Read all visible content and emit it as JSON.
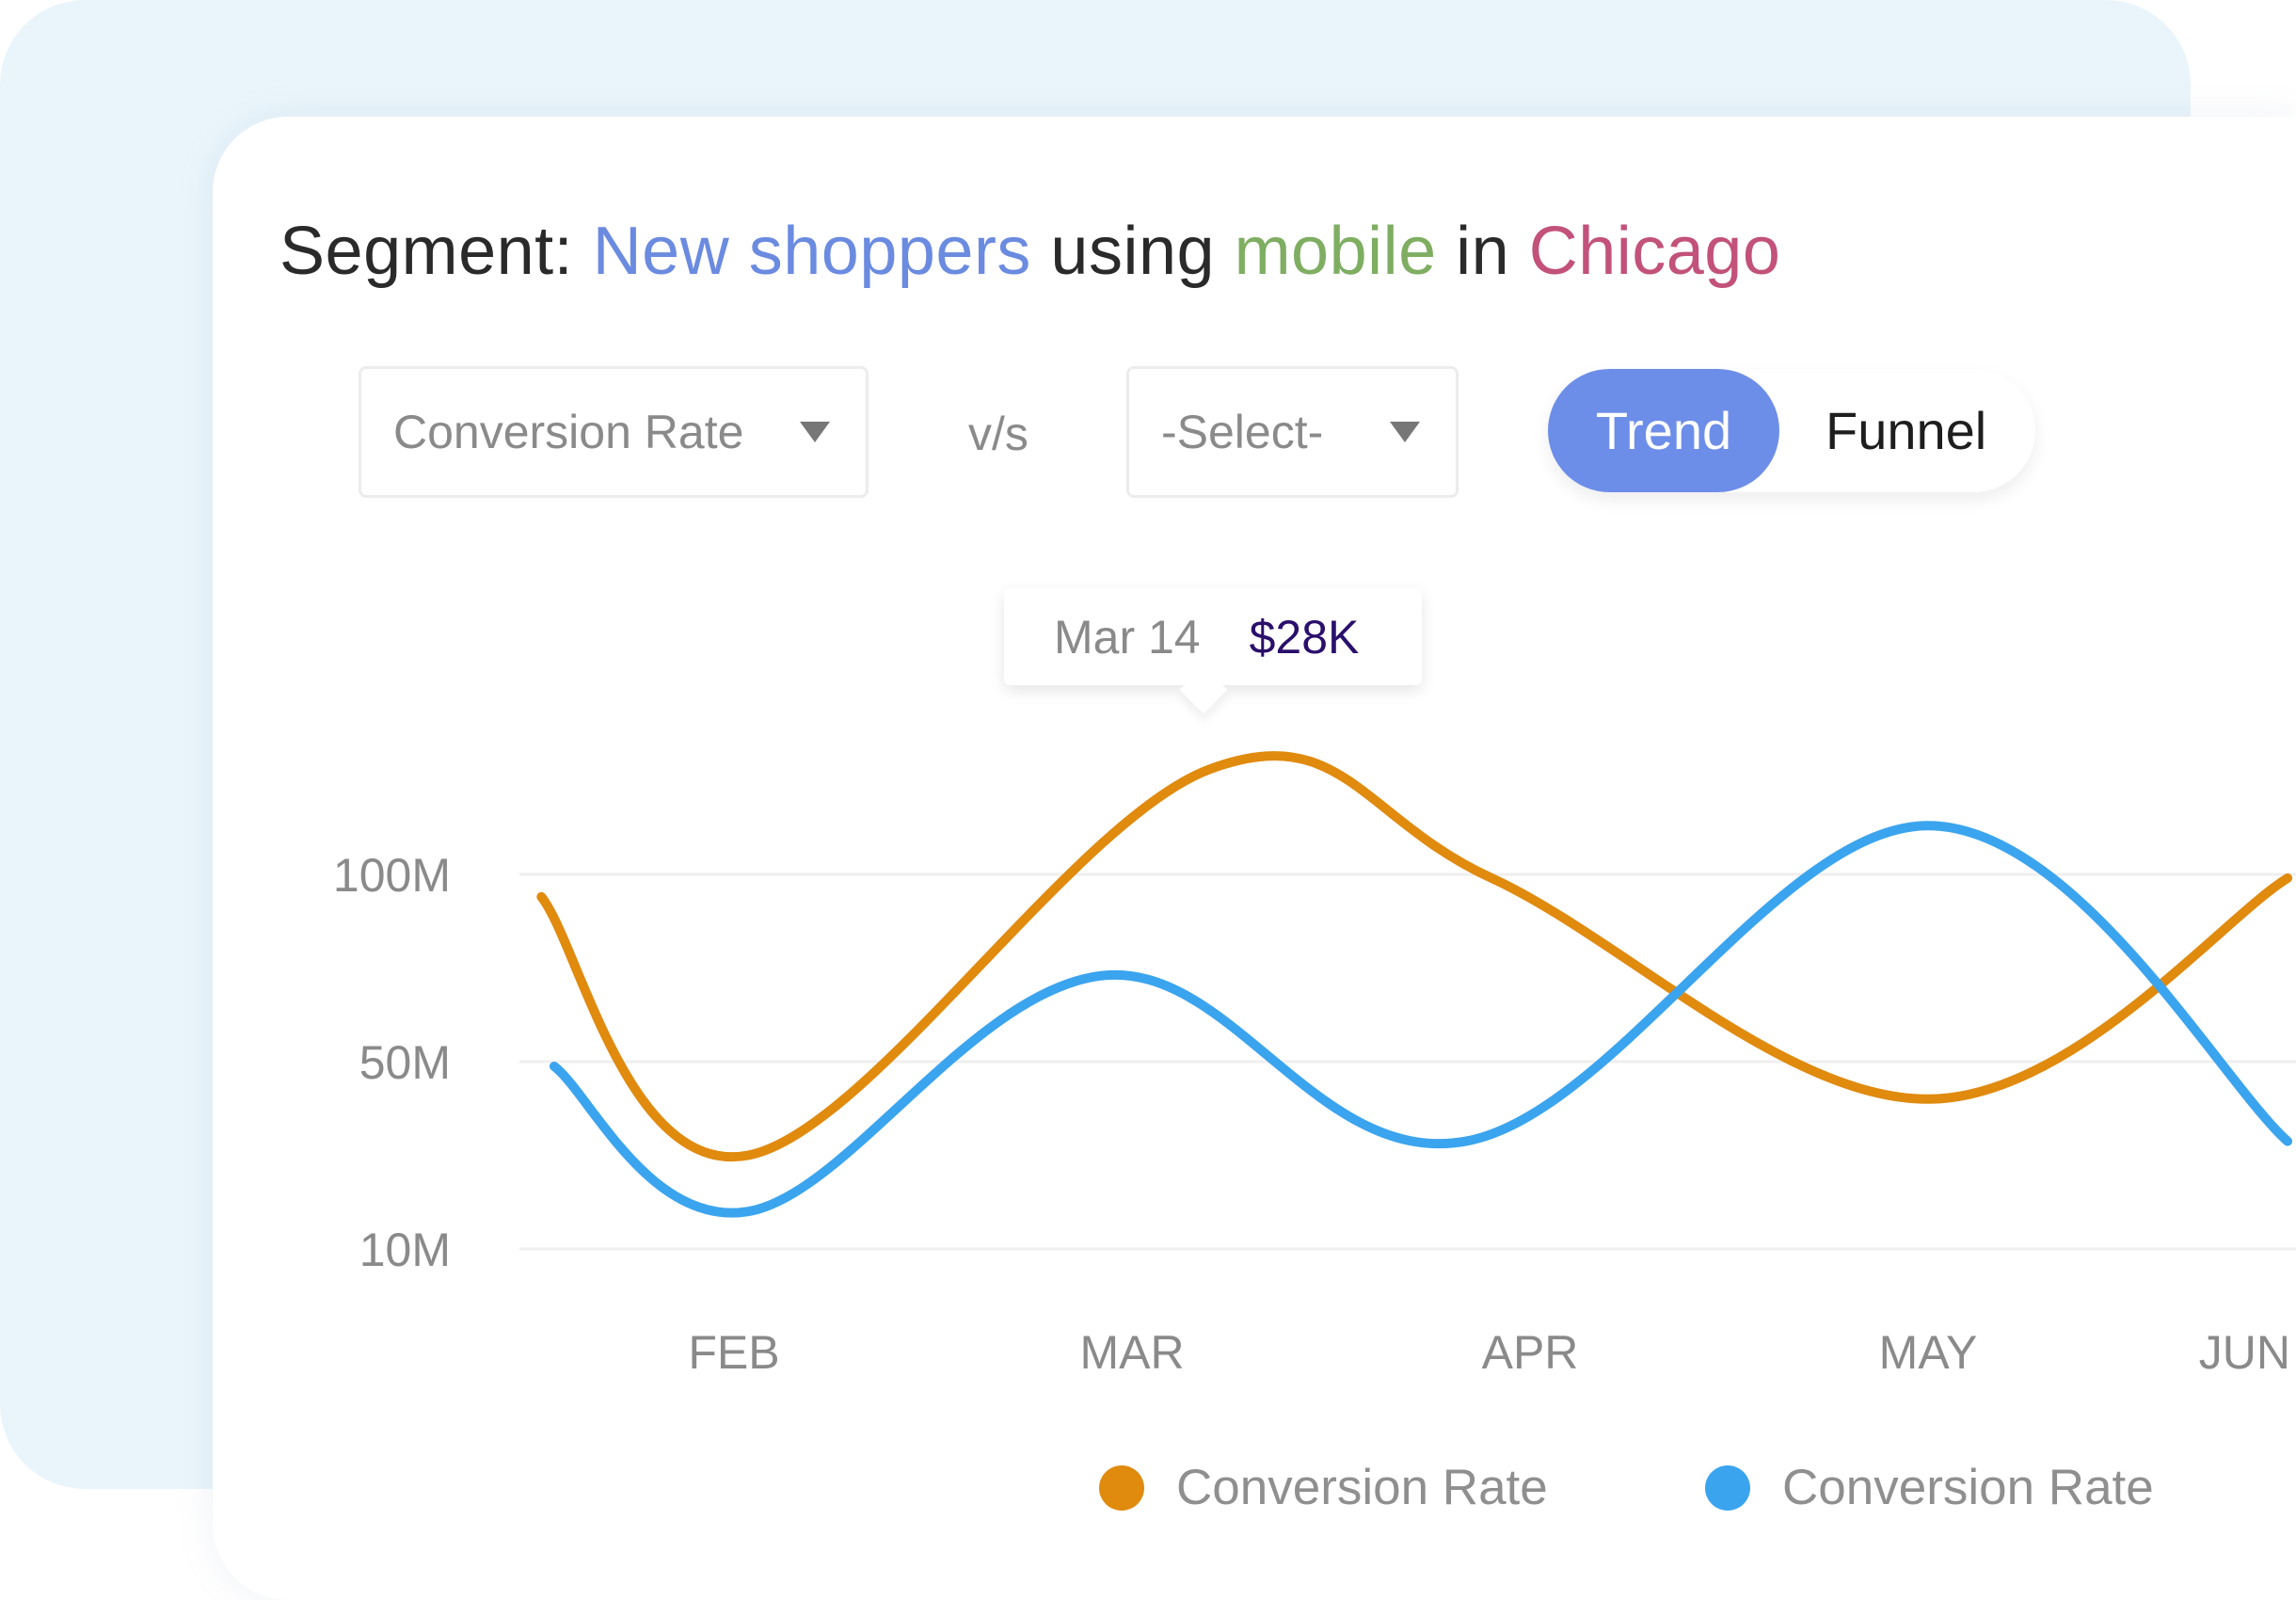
{
  "title": {
    "prefix": "Segment: ",
    "audience": "New shoppers",
    "w1": " using ",
    "device": "mobile",
    "w2": " in ",
    "city": "Chicago",
    "colors": {
      "text": "#2a2a2a",
      "audience": "#6B8BE0",
      "device": "#7FAE62",
      "city": "#C2527A"
    }
  },
  "controls": {
    "metric_dropdown": {
      "value": "Conversion Rate",
      "icon": "caret-down-icon"
    },
    "vs_label": "v/s",
    "compare_dropdown": {
      "value": "-Select-",
      "icon": "caret-down-icon"
    },
    "view_toggle": {
      "options": [
        "Trend",
        "Funnel"
      ],
      "selected": "Trend",
      "accent": "#6D8EE8"
    }
  },
  "tooltip": {
    "date": "Mar 14",
    "value": "$28K"
  },
  "chart_data": {
    "type": "line",
    "y_ticks": [
      {
        "label": "100M",
        "value": 100
      },
      {
        "label": "50M",
        "value": 50
      },
      {
        "label": "10M",
        "value": 10
      }
    ],
    "y_unit": "M",
    "x_ticks": [
      "FEB",
      "MAR",
      "APR",
      "MAY",
      "JUN"
    ],
    "grid": true,
    "legend_placement": "bottom",
    "series": [
      {
        "name": "Conversion Rate",
        "color": "#E08A0E",
        "points": [
          [
            "Jan 17",
            94
          ],
          [
            "Feb 2",
            30
          ],
          [
            "Mar 7",
            128
          ],
          [
            "Mar 29",
            99
          ],
          [
            "May 1",
            42
          ],
          [
            "May 29",
            99
          ]
        ]
      },
      {
        "name": "Conversion Rate",
        "color": "#3BA4EE",
        "points": [
          [
            "Jan 18",
            49
          ],
          [
            "Feb 2",
            18
          ],
          [
            "Feb 27",
            73
          ],
          [
            "Mar 27",
            33
          ],
          [
            "May 1",
            113
          ],
          [
            "May 29",
            33
          ]
        ]
      }
    ]
  }
}
